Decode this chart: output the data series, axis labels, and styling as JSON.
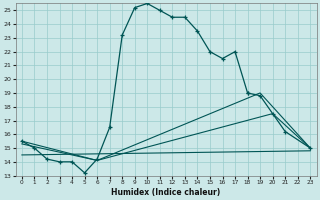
{
  "xlabel": "Humidex (Indice chaleur)",
  "bg_color": "#cce8e8",
  "grid_color": "#99cccc",
  "line_color": "#005555",
  "xlim": [
    -0.5,
    23.5
  ],
  "ylim": [
    13,
    25.5
  ],
  "yticks": [
    13,
    14,
    15,
    16,
    17,
    18,
    19,
    20,
    21,
    22,
    23,
    24,
    25
  ],
  "xticks": [
    0,
    1,
    2,
    3,
    4,
    5,
    6,
    7,
    8,
    9,
    10,
    11,
    12,
    13,
    14,
    15,
    16,
    17,
    18,
    19,
    20,
    21,
    22,
    23
  ],
  "main_x": [
    0,
    1,
    2,
    3,
    4,
    5,
    6,
    7,
    8,
    9,
    10,
    11,
    12,
    13,
    14,
    15,
    16,
    17,
    18
  ],
  "main_y": [
    15.5,
    15.0,
    14.2,
    14.0,
    14.0,
    13.2,
    14.2,
    16.5,
    23.2,
    25.2,
    25.5,
    25.0,
    24.5,
    24.5,
    23.5,
    22.0,
    21.5,
    22.0,
    19.0
  ],
  "right_x": [
    18,
    19,
    20,
    21,
    23
  ],
  "right_y": [
    19.0,
    18.8,
    17.5,
    16.2,
    15.0
  ],
  "line1_x": [
    0,
    23
  ],
  "line1_y": [
    14.5,
    14.8
  ],
  "line2_x": [
    0,
    6,
    20,
    23
  ],
  "line2_y": [
    15.3,
    14.1,
    17.5,
    15.0
  ],
  "line3_x": [
    0,
    6,
    19,
    23
  ],
  "line3_y": [
    15.5,
    14.1,
    19.0,
    15.0
  ]
}
